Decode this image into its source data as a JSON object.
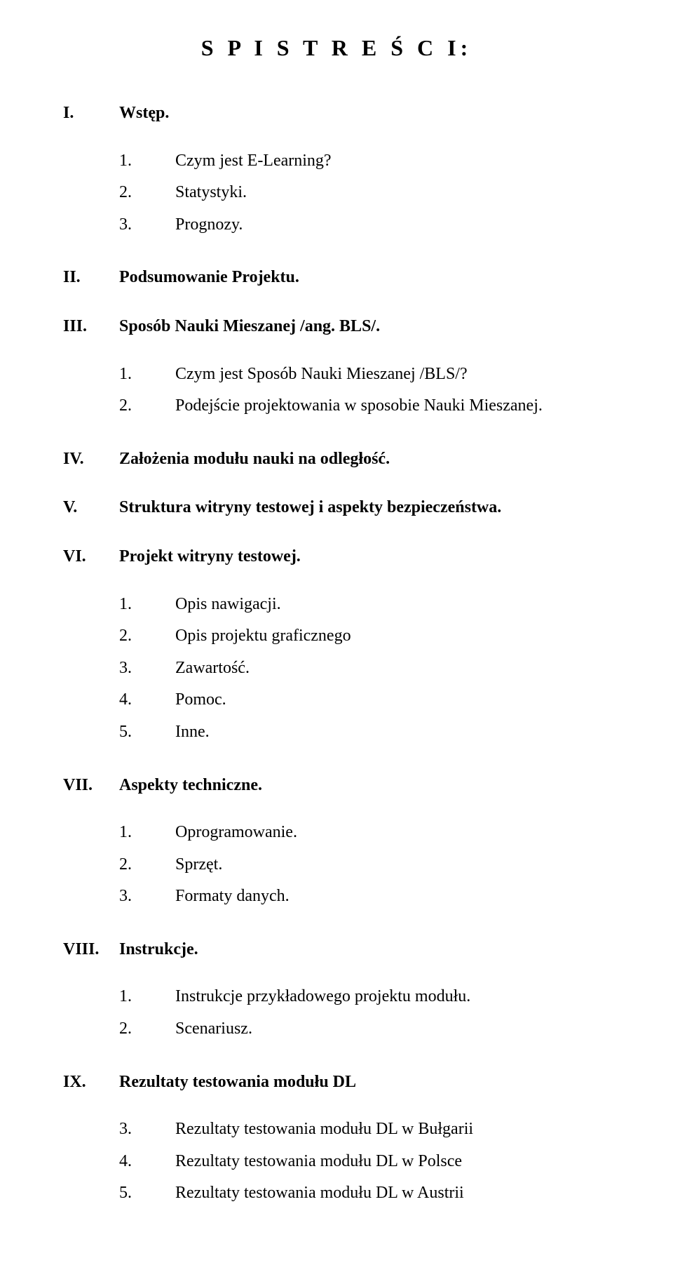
{
  "title": "S P I S  T R E Ś C I:",
  "sections": [
    {
      "num": "I.",
      "text": "Wstęp.",
      "sub": [
        {
          "num": "1.",
          "text": "Czym jest E-Learning?"
        },
        {
          "num": "2.",
          "text": "Statystyki."
        },
        {
          "num": "3.",
          "text": "Prognozy."
        }
      ]
    },
    {
      "num": "II.",
      "text": "Podsumowanie Projektu.",
      "sub": []
    },
    {
      "num": "III.",
      "text": "Sposób Nauki Mieszanej /ang. BLS/.",
      "sub": [
        {
          "num": "1.",
          "text": "Czym jest Sposób Nauki Mieszanej /BLS/?"
        },
        {
          "num": "2.",
          "text": "Podejście projektowania w sposobie Nauki Mieszanej."
        }
      ]
    },
    {
      "num": "IV.",
      "text": "Założenia modułu nauki na odległość.",
      "sub": []
    },
    {
      "num": "V.",
      "text": "Struktura witryny testowej i aspekty bezpieczeństwa.",
      "sub": []
    },
    {
      "num": "VI.",
      "text": "Projekt witryny testowej.",
      "sub": [
        {
          "num": "1.",
          "text": "Opis nawigacji."
        },
        {
          "num": "2.",
          "text": "Opis projektu graficznego"
        },
        {
          "num": "3.",
          "text": "Zawartość."
        },
        {
          "num": "4.",
          "text": "Pomoc."
        },
        {
          "num": "5.",
          "text": "Inne."
        }
      ]
    },
    {
      "num": "VII.",
      "text": "Aspekty techniczne.",
      "sub": [
        {
          "num": "1.",
          "text": "Oprogramowanie."
        },
        {
          "num": "2.",
          "text": "Sprzęt."
        },
        {
          "num": "3.",
          "text": "Formaty danych."
        }
      ]
    },
    {
      "num": "VIII.",
      "text": "Instrukcje.",
      "sub": [
        {
          "num": "1.",
          "text": "Instrukcje przykładowego projektu modułu."
        },
        {
          "num": "2.",
          "text": "Scenariusz."
        }
      ]
    },
    {
      "num": "IX.",
      "text": "Rezultaty testowania modułu DL",
      "sub": [
        {
          "num": "3.",
          "text": "Rezultaty testowania modułu DL w Bułgarii"
        },
        {
          "num": "4.",
          "text": "Rezultaty testowania modułu DL w Polsce"
        },
        {
          "num": "5.",
          "text": "Rezultaty testowania modułu DL w Austrii"
        }
      ]
    }
  ],
  "colors": {
    "background": "#ffffff",
    "text": "#000000"
  },
  "typography": {
    "title_fontsize": 32,
    "title_letter_spacing": 6,
    "section_fontsize": 24,
    "sub_fontsize": 24
  }
}
